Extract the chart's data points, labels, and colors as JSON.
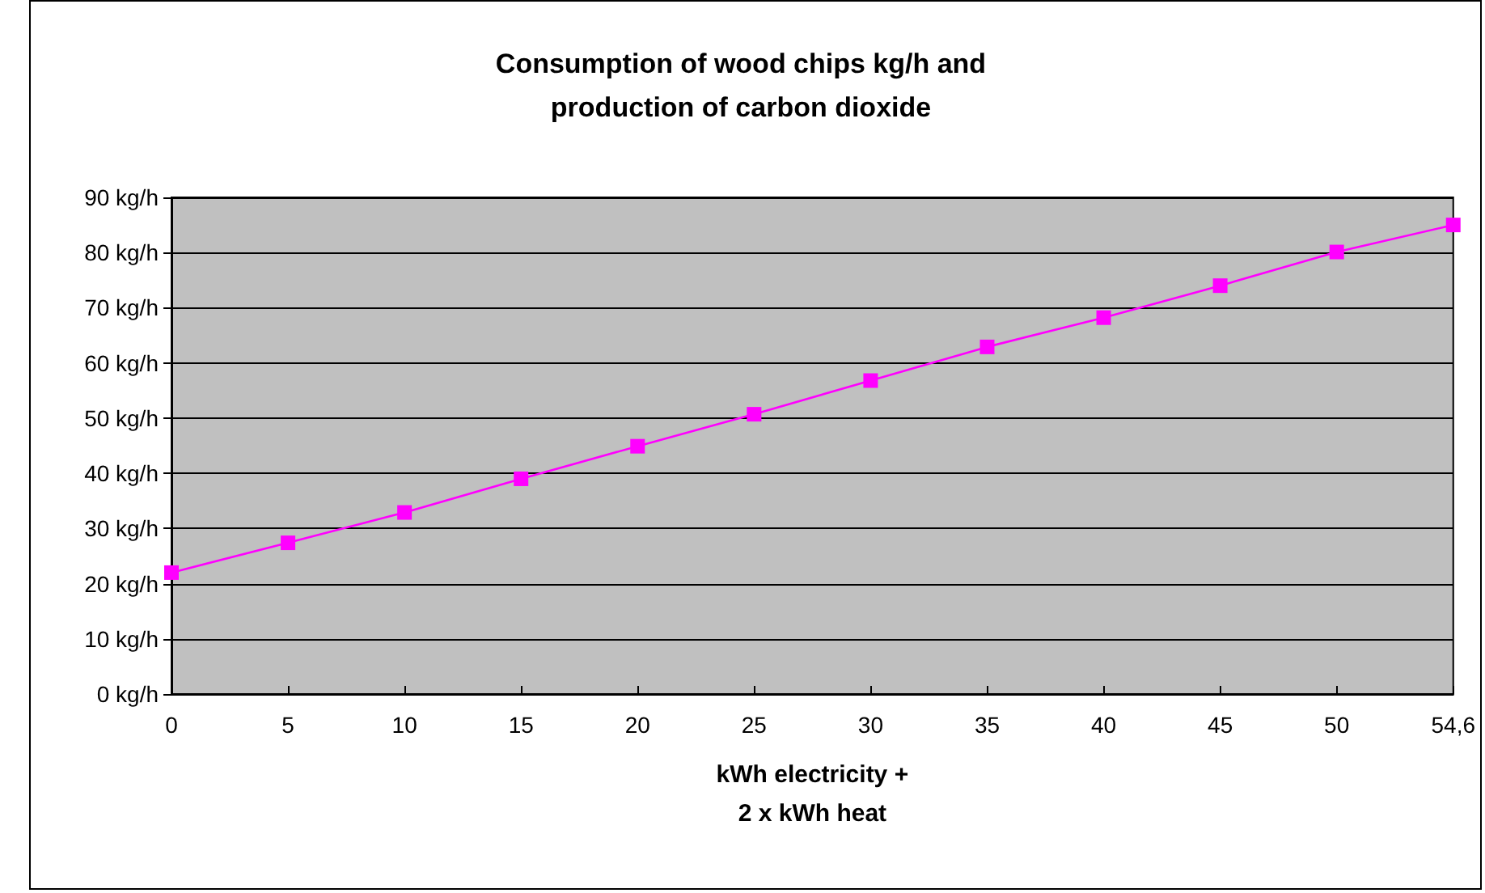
{
  "chart_data": {
    "type": "line",
    "title": "Consumption of wood chips kg/h and\nproduction of carbon dioxide",
    "xlabel": "kWh electricity +\n2 x kWh heat",
    "categories": [
      "0",
      "5",
      "10",
      "15",
      "20",
      "25",
      "30",
      "35",
      "40",
      "45",
      "50",
      "54,6"
    ],
    "series": [
      {
        "color": "#ff00ff",
        "values": [
          22,
          27.4,
          32.9,
          39,
          44.9,
          50.7,
          56.8,
          62.9,
          68.2,
          74,
          80.1,
          85
        ]
      }
    ],
    "ylim": [
      0,
      90
    ],
    "yticks": [
      {
        "value": 0,
        "label": "0 kg/h"
      },
      {
        "value": 10,
        "label": "10 kg/h"
      },
      {
        "value": 20,
        "label": "20 kg/h"
      },
      {
        "value": 30,
        "label": "30 kg/h"
      },
      {
        "value": 40,
        "label": "40 kg/h"
      },
      {
        "value": 50,
        "label": "50 kg/h"
      },
      {
        "value": 60,
        "label": "60 kg/h"
      },
      {
        "value": 70,
        "label": "70 kg/h"
      },
      {
        "value": 80,
        "label": "80 kg/h"
      },
      {
        "value": 90,
        "label": "90 kg/h"
      }
    ],
    "grid": "y",
    "marker": "square",
    "line_style": "solid"
  }
}
